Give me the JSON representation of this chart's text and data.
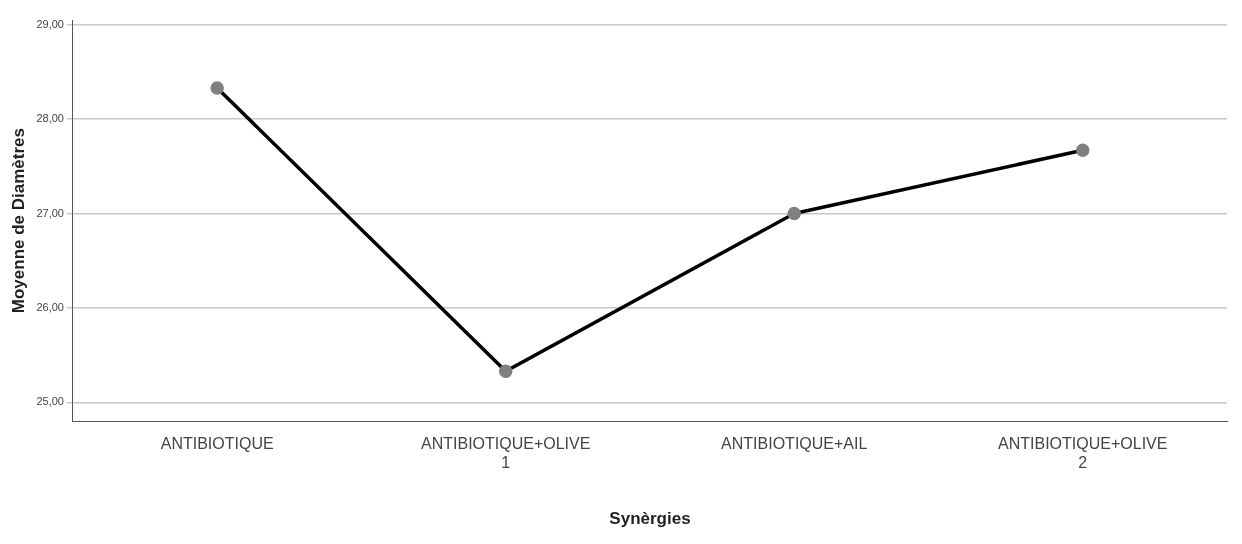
{
  "chart_data": {
    "type": "line",
    "xlabel": "Synèrgies",
    "ylabel": "Moyenne de Diamètres",
    "categories": [
      "ANTIBIOTIQUE",
      "ANTIBIOTIQUE+OLIVE 1",
      "ANTIBIOTIQUE+AIL",
      "ANTIBIOTIQUE+OLIVE 2"
    ],
    "series": [
      {
        "color": "#000000",
        "values": [
          28.33,
          25.33,
          27.0,
          27.67
        ]
      }
    ],
    "marker": "circle",
    "line_style": "solid",
    "grid": "y",
    "legend": false,
    "ylim": [
      24.8,
      29.05
    ],
    "yticks": [
      {
        "value": 25,
        "label": "25,00"
      },
      {
        "value": 26,
        "label": "26,00"
      },
      {
        "value": 27,
        "label": "27,00"
      },
      {
        "value": 28,
        "label": "28,00"
      },
      {
        "value": 29,
        "label": "29,00"
      }
    ]
  }
}
